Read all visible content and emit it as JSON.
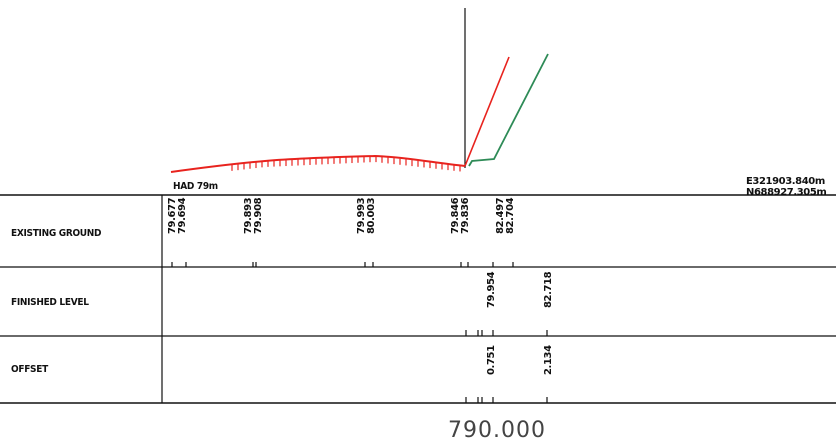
{
  "datum": "HAD 79m",
  "coords": {
    "easting": "E321903.840m",
    "northing": "N688927.305m"
  },
  "rows": {
    "existing_ground": {
      "label": "EXISTING GROUND",
      "values": [
        "79.677",
        "79.694",
        "79.893",
        "79.908",
        "79.993",
        "80.003",
        "79.846",
        "79.836",
        "82.497",
        "82.704"
      ]
    },
    "finished_level": {
      "label": "FINISHED LEVEL",
      "values": [
        "79.954",
        "82.718"
      ]
    },
    "offset": {
      "label": "OFFSET",
      "values": [
        "0.751",
        "2.134"
      ]
    }
  },
  "chainage": "790.000",
  "colors": {
    "existing_ground_line": "#e8231e",
    "finished_line_left": "#e8231e",
    "finished_line_right": "#2e8b57"
  }
}
